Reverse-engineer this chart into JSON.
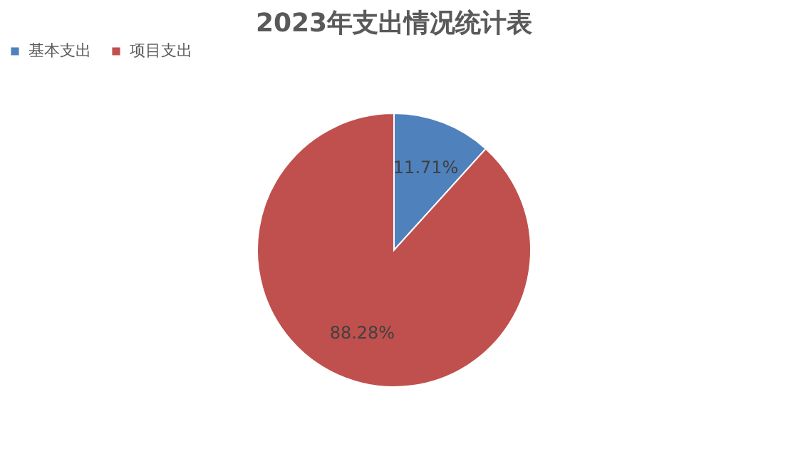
{
  "chart_data": {
    "type": "pie",
    "title": "2023年支出情况统计表",
    "categories": [
      "基本支出",
      "项目支出"
    ],
    "values": [
      11.71,
      88.28
    ],
    "colors": [
      "#4f81bd",
      "#c0504d"
    ],
    "value_labels": [
      "11.71%",
      "88.28%"
    ],
    "legend": "top"
  }
}
